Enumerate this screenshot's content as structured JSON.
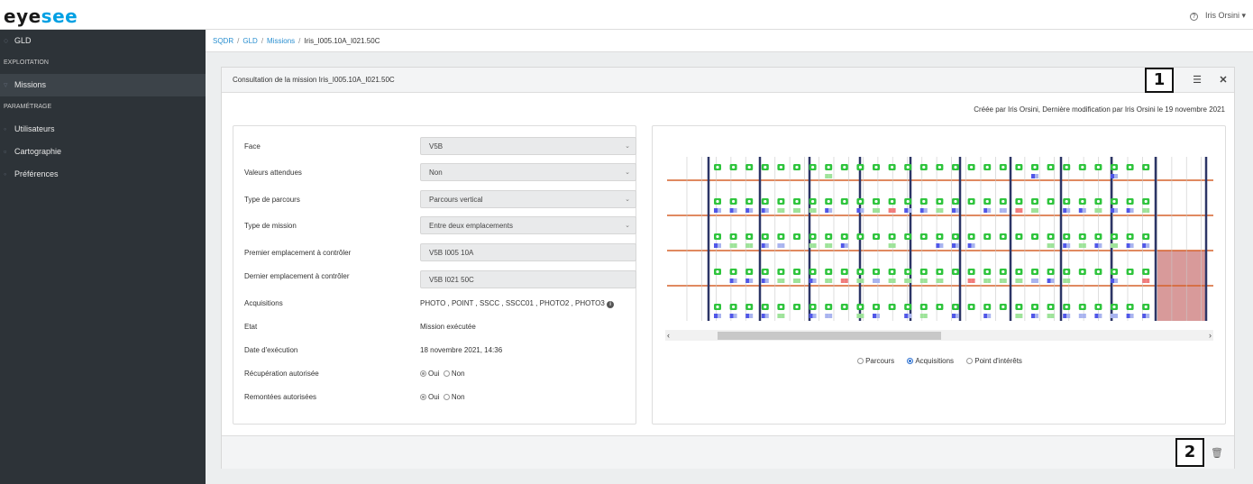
{
  "app": {
    "logo_prefix": "eye",
    "logo_suffix": "see",
    "user_name": "Iris Orsini ▾",
    "help_icon": "help-circle-icon"
  },
  "sidebar": {
    "top_item": "GLD",
    "section_exploitation": "EXPLOITATION",
    "missions": "Missions",
    "section_parametrage": "PARAMÉTRAGE",
    "utilisateurs": "Utilisateurs",
    "cartographie": "Cartographie",
    "preferences": "Préférences"
  },
  "breadcrumb": {
    "c1": "SQDR",
    "c2": "GLD",
    "c3": "Missions",
    "current": "Iris_I005.10A_I021.50C",
    "separator": "/"
  },
  "panel": {
    "title": "Consultation de la mission Iris_I005.10A_I021.50C",
    "meta": "Créée par Iris Orsini, Dernière modification par Iris Orsini le 19 novembre 2021",
    "callout_1": "1",
    "callout_2": "2"
  },
  "form": {
    "face": {
      "label": "Face",
      "value": "V5B"
    },
    "valeurs": {
      "label": "Valeurs attendues",
      "value": "Non"
    },
    "type_parcours": {
      "label": "Type de parcours",
      "value": "Parcours vertical"
    },
    "type_mission": {
      "label": "Type de mission",
      "value": "Entre deux emplacements"
    },
    "premier": {
      "label": "Premier emplacement à contrôler",
      "value": "V5B I005 10A"
    },
    "dernier": {
      "label": "Dernier emplacement à contrôler",
      "value": "V5B I021 50C"
    },
    "acquisitions": {
      "label": "Acquisitions",
      "value": "PHOTO , POINT , SSCC , SSCC01 , PHOTO2 , PHOTO3"
    },
    "etat": {
      "label": "Etat",
      "value": "Mission exécutée"
    },
    "date": {
      "label": "Date d'exécution",
      "value": "18 novembre 2021, 14:36"
    },
    "recuperation": {
      "label": "Récupération autorisée",
      "oui": "Oui",
      "non": "Non"
    },
    "remontees": {
      "label": "Remontées autorisées",
      "oui": "Oui",
      "non": "Non"
    }
  },
  "viz": {
    "options": {
      "parcours": "Parcours",
      "acquisitions": "Acquisitions",
      "points": "Point d'intérêts"
    },
    "selected": "acquisitions",
    "colors": {
      "green": "#2ec43c",
      "light_green": "#9ee39a",
      "blue": "#5057e8",
      "light_blue": "#a9b4ef",
      "red": "#f07c7c",
      "pole": "#2c3566",
      "shelf": "#d5622b",
      "zone": "#d89a9a"
    }
  }
}
